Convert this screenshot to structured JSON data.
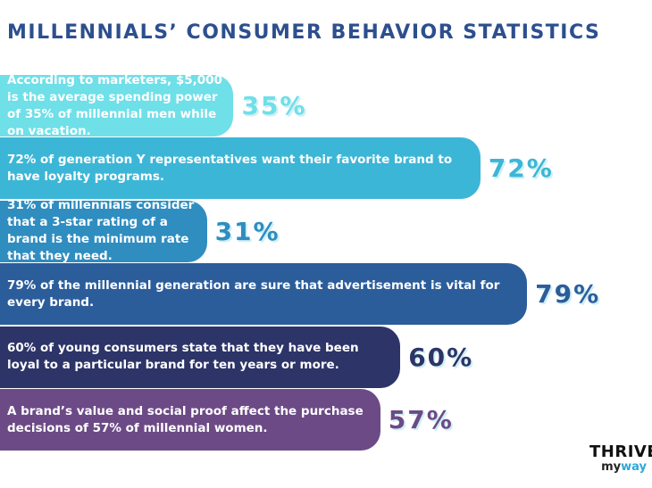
{
  "chart_data": {
    "type": "bar",
    "orientation": "horizontal",
    "title": "MILLENNIALS’ CONSUMER BEHAVIOR STATISTICS",
    "categories": [
      "According to marketers, $5,000 is the average spending power of 35% of millennial men while on vacation.",
      "72% of generation Y representatives want their favorite brand to have loyalty programs.",
      "31% of millennials consider that a 3-star rating of a brand is the minimum rate that they need.",
      "79% of the millennial generation are sure that advertisement is vital for every brand.",
      "60% of young consumers state that they have been loyal to a particular brand for ten years or more.",
      "A brand’s value and social proof affect the purchase decisions of 57% of millennial women."
    ],
    "values": [
      35,
      72,
      31,
      79,
      60,
      57
    ],
    "value_labels": [
      "35%",
      "72%",
      "31%",
      "79%",
      "60%",
      "57%"
    ],
    "colors": [
      "#6fdfe8",
      "#3cb6d6",
      "#2f8dc0",
      "#2c5d9b",
      "#2d3468",
      "#6c4a86"
    ]
  },
  "logo": {
    "top": "THRIVE",
    "bottom_left": "my",
    "bottom_right": "way"
  }
}
